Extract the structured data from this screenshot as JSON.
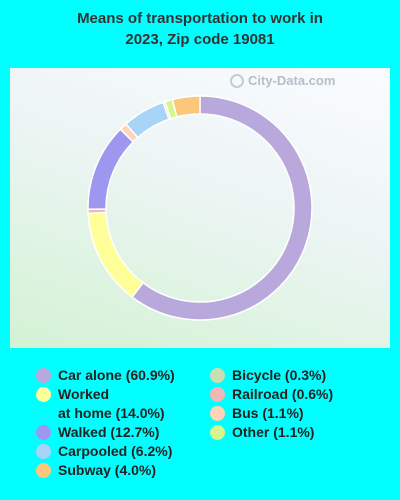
{
  "chart_data": {
    "type": "pie",
    "title": "Means of transportation to work in 2023, Zip code 19081",
    "watermark": "City-Data.com",
    "slices": [
      {
        "label": "Car alone (60.9%)",
        "value": 60.9,
        "color": "#b9a8db"
      },
      {
        "label": "Worked at home (14.0%)",
        "value": 14.0,
        "color": "#ffff99"
      },
      {
        "label": "Railroad (0.6%)",
        "value": 0.6,
        "color": "#f4b5b5"
      },
      {
        "label": "Walked (12.7%)",
        "value": 12.7,
        "color": "#9d97ef"
      },
      {
        "label": "Bus (1.1%)",
        "value": 1.1,
        "color": "#ffd5b6"
      },
      {
        "label": "Carpooled (6.2%)",
        "value": 6.2,
        "color": "#a8d4f7"
      },
      {
        "label": "Bicycle (0.3%)",
        "value": 0.3,
        "color": "#c9deb2"
      },
      {
        "label": "Other (1.1%)",
        "value": 1.1,
        "color": "#d6f58c"
      },
      {
        "label": "Subway (4.0%)",
        "value": 4.0,
        "color": "#fcc67b"
      }
    ],
    "legend_left": [
      {
        "label": "Car alone (60.9%)",
        "color": "#b9a8db"
      },
      {
        "label": "Worked\nat home (14.0%)",
        "color": "#ffff99"
      },
      {
        "label": "Walked (12.7%)",
        "color": "#9d97ef"
      },
      {
        "label": "Carpooled (6.2%)",
        "color": "#a8d4f7"
      },
      {
        "label": "Subway (4.0%)",
        "color": "#fcc67b"
      }
    ],
    "legend_right": [
      {
        "label": "Bicycle (0.3%)",
        "color": "#c9deb2"
      },
      {
        "label": "Railroad (0.6%)",
        "color": "#f4b5b5"
      },
      {
        "label": "Bus (1.1%)",
        "color": "#ffd5b6"
      },
      {
        "label": "Other (1.1%)",
        "color": "#d6f58c"
      }
    ]
  }
}
